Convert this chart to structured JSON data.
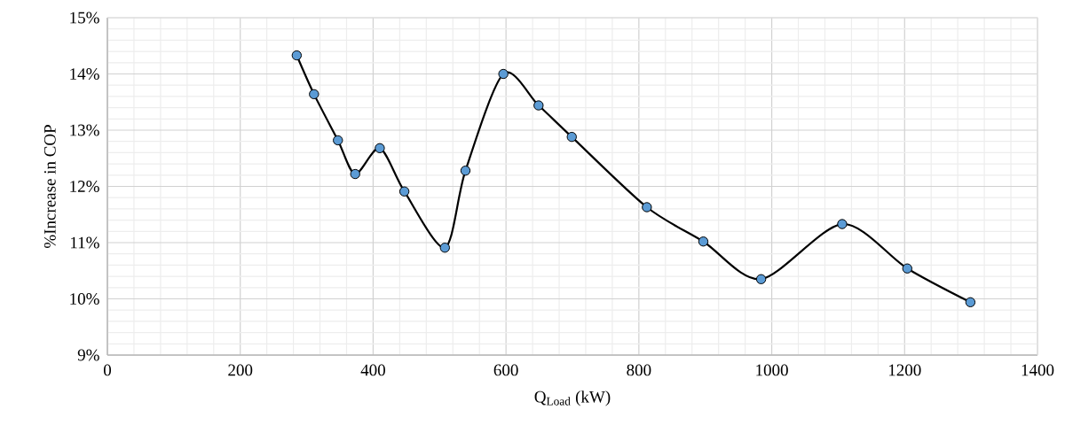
{
  "chart_data": {
    "type": "line",
    "xlabel": "Q$_{Load}$ (kW)",
    "ylabel": "%Increase in COP",
    "x": [
      285,
      311,
      347,
      373,
      410,
      447,
      508,
      539,
      596,
      649,
      699,
      812,
      897,
      984,
      1106,
      1204,
      1299
    ],
    "series": [
      {
        "color": "#5b9bd5",
        "values": [
          14.33,
          13.64,
          12.82,
          12.22,
          12.68,
          11.91,
          10.91,
          12.28,
          14.0,
          13.44,
          12.88,
          11.63,
          11.02,
          10.35,
          11.33,
          10.54,
          9.94
        ]
      }
    ],
    "xlim": [
      0,
      1400
    ],
    "xticks": [
      0,
      200,
      400,
      600,
      800,
      1000,
      1200,
      1400
    ],
    "ylim": [
      9,
      15
    ],
    "yticks": [
      {
        "value": 9,
        "label": "9%"
      },
      {
        "value": 10,
        "label": "10%"
      },
      {
        "value": 11,
        "label": "11%"
      },
      {
        "value": 12,
        "label": "12%"
      },
      {
        "value": 13,
        "label": "13%"
      },
      {
        "value": 14,
        "label": "14%"
      },
      {
        "value": 15,
        "label": "15%"
      }
    ],
    "grid": true,
    "marker": "circle",
    "line_style": "solid"
  }
}
